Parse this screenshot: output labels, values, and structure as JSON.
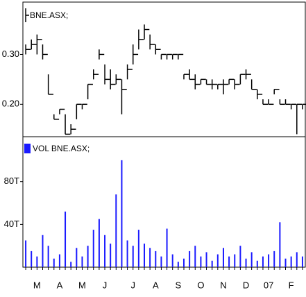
{
  "chart_data": [
    {
      "type": "hlc",
      "legend": "BNE.ASX;",
      "color": "#000000",
      "high": [
        0.32,
        0.33,
        0.34,
        0.32,
        0.26,
        0.18,
        0.19,
        0.18,
        0.16,
        0.2,
        0.2,
        0.24,
        0.27,
        0.31,
        0.28,
        0.27,
        0.26,
        0.25,
        0.28,
        0.32,
        0.35,
        0.36,
        0.34,
        0.32,
        0.3,
        0.3,
        0.3,
        0.3,
        0.26,
        0.27,
        0.26,
        0.25,
        0.25,
        0.25,
        0.24,
        0.25,
        0.25,
        0.25,
        0.26,
        0.27,
        0.25,
        0.23,
        0.21,
        0.21,
        0.23,
        0.21,
        0.21,
        0.2,
        0.2,
        0.2
      ],
      "low": [
        0.3,
        0.31,
        0.3,
        0.29,
        0.22,
        0.17,
        0.18,
        0.14,
        0.14,
        0.17,
        0.19,
        0.21,
        0.25,
        0.29,
        0.24,
        0.23,
        0.24,
        0.18,
        0.25,
        0.28,
        0.31,
        0.33,
        0.31,
        0.3,
        0.29,
        0.29,
        0.29,
        0.29,
        0.25,
        0.25,
        0.23,
        0.24,
        0.24,
        0.23,
        0.23,
        0.22,
        0.24,
        0.23,
        0.24,
        0.25,
        0.23,
        0.21,
        0.2,
        0.2,
        0.22,
        0.2,
        0.2,
        0.19,
        0.14,
        0.19
      ],
      "close": [
        0.31,
        0.32,
        0.33,
        0.3,
        0.22,
        0.17,
        0.19,
        0.14,
        0.15,
        0.2,
        0.2,
        0.24,
        0.26,
        0.3,
        0.25,
        0.24,
        0.25,
        0.23,
        0.27,
        0.3,
        0.33,
        0.35,
        0.32,
        0.31,
        0.3,
        0.3,
        0.3,
        0.3,
        0.26,
        0.25,
        0.24,
        0.25,
        0.24,
        0.24,
        0.24,
        0.24,
        0.25,
        0.24,
        0.26,
        0.26,
        0.23,
        0.22,
        0.2,
        0.2,
        0.23,
        0.2,
        0.2,
        0.2,
        0.2,
        0.2
      ],
      "ylim": [
        0.135,
        0.405
      ],
      "yticks": [
        {
          "value": 0.2,
          "label": "0.20"
        },
        {
          "value": 0.3,
          "label": "0.30"
        }
      ]
    },
    {
      "type": "bar",
      "legend": "VOL BNE.ASX;",
      "color": "#1a1aff",
      "categories": [
        null,
        null,
        "M",
        null,
        null,
        null,
        "A",
        null,
        null,
        null,
        "M",
        null,
        null,
        null,
        "J",
        null,
        null,
        null,
        null,
        "J",
        null,
        null,
        null,
        "A",
        null,
        null,
        null,
        "S",
        null,
        null,
        null,
        "O",
        null,
        null,
        null,
        "N",
        null,
        null,
        null,
        "D",
        null,
        null,
        null,
        "07",
        null,
        null,
        null,
        "F",
        null,
        null
      ],
      "values": [
        25,
        15,
        10,
        30,
        20,
        8,
        12,
        52,
        5,
        18,
        10,
        20,
        35,
        45,
        30,
        22,
        68,
        100,
        25,
        20,
        35,
        22,
        18,
        15,
        10,
        36,
        12,
        5,
        8,
        15,
        20,
        10,
        14,
        6,
        12,
        18,
        10,
        12,
        20,
        8,
        14,
        6,
        10,
        12,
        15,
        42,
        8,
        10,
        14,
        10
      ],
      "ylim": [
        0,
        122
      ],
      "yticks": [
        {
          "value": 40,
          "label": "40T"
        },
        {
          "value": 80,
          "label": "80T"
        }
      ]
    }
  ]
}
